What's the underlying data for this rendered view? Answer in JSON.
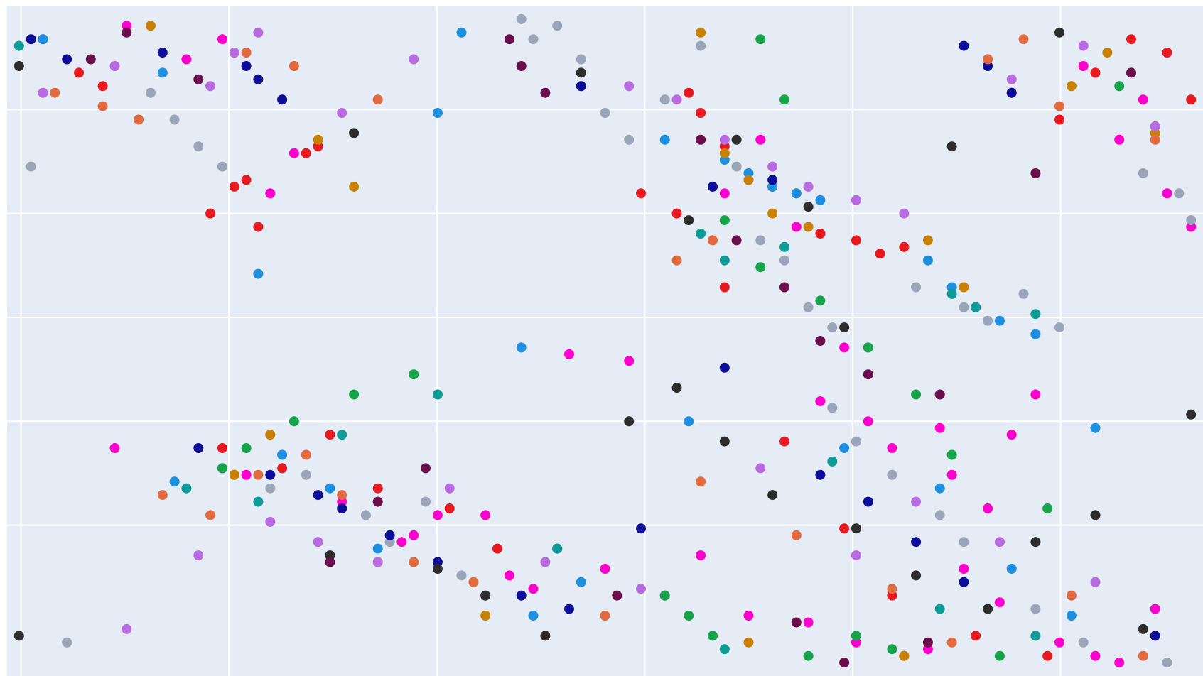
{
  "chart_data": {
    "type": "scatter",
    "title": "",
    "xlabel": "",
    "ylabel": "",
    "xlim": [
      0,
      1
    ],
    "ylim": [
      0,
      1
    ],
    "grid": true,
    "legend": "none",
    "colors": {
      "background": "#e5ecf6",
      "gridline": "#ffffff"
    },
    "series": [
      {
        "color": "#ff00cc",
        "x": [
          0.1,
          0.15,
          0.18,
          0.22,
          0.24,
          0.09,
          0.34,
          0.4,
          0.5,
          0.52,
          0.47,
          0.6,
          0.63,
          0.66,
          0.68,
          0.7,
          0.72,
          0.74,
          0.78,
          0.79,
          0.82,
          0.84,
          0.86,
          0.9,
          0.93,
          0.95,
          0.97,
          0.99,
          0.2,
          0.28,
          0.33,
          0.36,
          0.42,
          0.44,
          0.55,
          0.58,
          0.62,
          0.67,
          0.71,
          0.75,
          0.77,
          0.8,
          0.83,
          0.88,
          0.91,
          0.93,
          0.96
        ],
        "y": [
          0.97,
          0.92,
          0.95,
          0.72,
          0.78,
          0.34,
          0.21,
          0.24,
          0.16,
          0.47,
          0.48,
          0.72,
          0.8,
          0.67,
          0.41,
          0.49,
          0.38,
          0.34,
          0.37,
          0.3,
          0.25,
          0.36,
          0.42,
          0.91,
          0.8,
          0.86,
          0.72,
          0.67,
          0.3,
          0.26,
          0.2,
          0.24,
          0.15,
          0.13,
          0.12,
          0.18,
          0.09,
          0.08,
          0.05,
          0.03,
          0.04,
          0.16,
          0.11,
          0.05,
          0.03,
          0.02,
          0.1
        ]
      },
      {
        "color": "#9aa5b8",
        "x": [
          0.43,
          0.44,
          0.46,
          0.48,
          0.52,
          0.55,
          0.58,
          0.61,
          0.63,
          0.65,
          0.67,
          0.69,
          0.72,
          0.76,
          0.8,
          0.82,
          0.85,
          0.88,
          0.95,
          0.98,
          0.99,
          0.12,
          0.14,
          0.16,
          0.18,
          0.22,
          0.25,
          0.3,
          0.32,
          0.35,
          0.38,
          0.02,
          0.05,
          0.48,
          0.5,
          0.69,
          0.71,
          0.74,
          0.78,
          0.8,
          0.84,
          0.86,
          0.9,
          0.97
        ],
        "y": [
          0.98,
          0.95,
          0.97,
          0.92,
          0.8,
          0.86,
          0.94,
          0.76,
          0.65,
          0.62,
          0.55,
          0.52,
          0.49,
          0.58,
          0.55,
          0.53,
          0.57,
          0.52,
          0.75,
          0.72,
          0.68,
          0.87,
          0.83,
          0.79,
          0.76,
          0.28,
          0.3,
          0.24,
          0.2,
          0.26,
          0.15,
          0.76,
          0.05,
          0.88,
          0.84,
          0.4,
          0.35,
          0.3,
          0.24,
          0.2,
          0.16,
          0.1,
          0.05,
          0.02
        ]
      },
      {
        "color": "#e8191f",
        "x": [
          0.06,
          0.2,
          0.26,
          0.17,
          0.19,
          0.21,
          0.25,
          0.57,
          0.58,
          0.6,
          0.62,
          0.64,
          0.66,
          0.68,
          0.71,
          0.73,
          0.75,
          0.82,
          0.84,
          0.88,
          0.91,
          0.94,
          0.97,
          0.99,
          0.18,
          0.23,
          0.27,
          0.31,
          0.37,
          0.41,
          0.03,
          0.08,
          0.53,
          0.56,
          0.6,
          0.65,
          0.7,
          0.74,
          0.81,
          0.87
        ],
        "y": [
          0.9,
          0.74,
          0.79,
          0.69,
          0.73,
          0.67,
          0.78,
          0.87,
          0.84,
          0.79,
          0.74,
          0.73,
          0.72,
          0.66,
          0.65,
          0.63,
          0.64,
          0.92,
          0.87,
          0.83,
          0.9,
          0.95,
          0.93,
          0.86,
          0.34,
          0.31,
          0.36,
          0.28,
          0.25,
          0.19,
          0.95,
          0.88,
          0.72,
          0.69,
          0.58,
          0.35,
          0.22,
          0.12,
          0.06,
          0.03
        ]
      },
      {
        "color": "#1f8fe0",
        "x": [
          0.03,
          0.13,
          0.36,
          0.38,
          0.55,
          0.6,
          0.62,
          0.64,
          0.66,
          0.68,
          0.77,
          0.79,
          0.81,
          0.83,
          0.86,
          0.91,
          0.14,
          0.19,
          0.23,
          0.27,
          0.31,
          0.4,
          0.44,
          0.48,
          0.21,
          0.43,
          0.57,
          0.7,
          0.78,
          0.84,
          0.89
        ],
        "y": [
          0.95,
          0.9,
          0.84,
          0.96,
          0.8,
          0.77,
          0.75,
          0.73,
          0.72,
          0.71,
          0.62,
          0.58,
          0.55,
          0.53,
          0.51,
          0.37,
          0.29,
          0.3,
          0.33,
          0.28,
          0.19,
          0.12,
          0.09,
          0.14,
          0.6,
          0.49,
          0.38,
          0.34,
          0.28,
          0.16,
          0.09
        ]
      },
      {
        "color": "#0d0d99",
        "x": [
          0.02,
          0.05,
          0.13,
          0.2,
          0.21,
          0.23,
          0.48,
          0.59,
          0.64,
          0.8,
          0.82,
          0.84,
          0.16,
          0.18,
          0.22,
          0.26,
          0.28,
          0.32,
          0.36,
          0.43,
          0.47,
          0.53,
          0.6,
          0.68,
          0.72,
          0.76,
          0.8,
          0.96
        ],
        "y": [
          0.95,
          0.92,
          0.93,
          0.91,
          0.89,
          0.86,
          0.88,
          0.73,
          0.74,
          0.94,
          0.91,
          0.87,
          0.34,
          0.31,
          0.3,
          0.27,
          0.25,
          0.21,
          0.17,
          0.12,
          0.1,
          0.22,
          0.46,
          0.3,
          0.26,
          0.2,
          0.14,
          0.06
        ]
      },
      {
        "color": "#2d2d2d",
        "x": [
          0.01,
          0.19,
          0.29,
          0.48,
          0.57,
          0.61,
          0.67,
          0.7,
          0.79,
          0.88,
          0.99,
          0.27,
          0.36,
          0.4,
          0.45,
          0.52,
          0.56,
          0.6,
          0.64,
          0.71,
          0.76,
          0.82,
          0.86,
          0.91,
          0.95,
          0.01
        ],
        "y": [
          0.91,
          0.93,
          0.81,
          0.9,
          0.68,
          0.8,
          0.7,
          0.52,
          0.79,
          0.96,
          0.39,
          0.18,
          0.16,
          0.12,
          0.06,
          0.38,
          0.43,
          0.35,
          0.27,
          0.22,
          0.15,
          0.1,
          0.2,
          0.24,
          0.07,
          0.06
        ]
      },
      {
        "color": "#17a34a",
        "x": [
          0.63,
          0.65,
          0.18,
          0.2,
          0.24,
          0.29,
          0.34,
          0.6,
          0.63,
          0.68,
          0.72,
          0.76,
          0.79,
          0.87,
          0.93,
          0.55,
          0.57,
          0.59,
          0.67,
          0.71,
          0.74,
          0.83
        ],
        "y": [
          0.95,
          0.86,
          0.31,
          0.34,
          0.38,
          0.42,
          0.45,
          0.68,
          0.61,
          0.56,
          0.49,
          0.42,
          0.33,
          0.25,
          0.88,
          0.12,
          0.09,
          0.06,
          0.03,
          0.06,
          0.04,
          0.03
        ]
      },
      {
        "color": "#c98200",
        "x": [
          0.12,
          0.26,
          0.29,
          0.58,
          0.6,
          0.62,
          0.64,
          0.67,
          0.77,
          0.8,
          0.89,
          0.92,
          0.96,
          0.19,
          0.22,
          0.4,
          0.62,
          0.75
        ],
        "y": [
          0.97,
          0.8,
          0.73,
          0.96,
          0.78,
          0.74,
          0.69,
          0.67,
          0.65,
          0.58,
          0.88,
          0.93,
          0.81,
          0.3,
          0.36,
          0.09,
          0.05,
          0.03
        ]
      },
      {
        "color": "#6b0f4a",
        "x": [
          0.07,
          0.1,
          0.16,
          0.42,
          0.43,
          0.45,
          0.58,
          0.61,
          0.65,
          0.68,
          0.72,
          0.78,
          0.86,
          0.94,
          0.27,
          0.31,
          0.35,
          0.46,
          0.51,
          0.66,
          0.7,
          0.77
        ],
        "y": [
          0.92,
          0.96,
          0.89,
          0.95,
          0.91,
          0.87,
          0.8,
          0.65,
          0.58,
          0.5,
          0.45,
          0.42,
          0.75,
          0.9,
          0.17,
          0.26,
          0.31,
          0.19,
          0.12,
          0.08,
          0.02,
          0.05
        ]
      },
      {
        "color": "#e26a3f",
        "x": [
          0.04,
          0.08,
          0.11,
          0.2,
          0.24,
          0.31,
          0.56,
          0.59,
          0.82,
          0.85,
          0.88,
          0.96,
          0.13,
          0.17,
          0.21,
          0.25,
          0.28,
          0.34,
          0.39,
          0.5,
          0.58,
          0.66,
          0.74,
          0.79,
          0.89,
          0.95
        ],
        "y": [
          0.87,
          0.85,
          0.83,
          0.93,
          0.91,
          0.86,
          0.62,
          0.65,
          0.92,
          0.95,
          0.85,
          0.8,
          0.27,
          0.24,
          0.3,
          0.33,
          0.27,
          0.17,
          0.14,
          0.09,
          0.29,
          0.21,
          0.13,
          0.05,
          0.12,
          0.03
        ]
      },
      {
        "color": "#0f9c96",
        "x": [
          0.01,
          0.58,
          0.6,
          0.65,
          0.79,
          0.81,
          0.86,
          0.15,
          0.21,
          0.28,
          0.36,
          0.46,
          0.6,
          0.69,
          0.78,
          0.86
        ],
        "y": [
          0.94,
          0.66,
          0.62,
          0.64,
          0.57,
          0.55,
          0.54,
          0.28,
          0.26,
          0.36,
          0.42,
          0.19,
          0.04,
          0.32,
          0.1,
          0.06
        ]
      },
      {
        "color": "#b86be0",
        "x": [
          0.03,
          0.09,
          0.17,
          0.19,
          0.21,
          0.28,
          0.34,
          0.52,
          0.56,
          0.6,
          0.64,
          0.67,
          0.71,
          0.75,
          0.84,
          0.9,
          0.96,
          0.1,
          0.16,
          0.22,
          0.26,
          0.31,
          0.37,
          0.45,
          0.53,
          0.63,
          0.71,
          0.76,
          0.83,
          0.91
        ],
        "y": [
          0.87,
          0.91,
          0.88,
          0.93,
          0.96,
          0.84,
          0.92,
          0.88,
          0.86,
          0.8,
          0.76,
          0.73,
          0.71,
          0.69,
          0.89,
          0.94,
          0.82,
          0.07,
          0.18,
          0.23,
          0.2,
          0.17,
          0.28,
          0.17,
          0.13,
          0.31,
          0.18,
          0.26,
          0.2,
          0.14
        ]
      }
    ]
  }
}
